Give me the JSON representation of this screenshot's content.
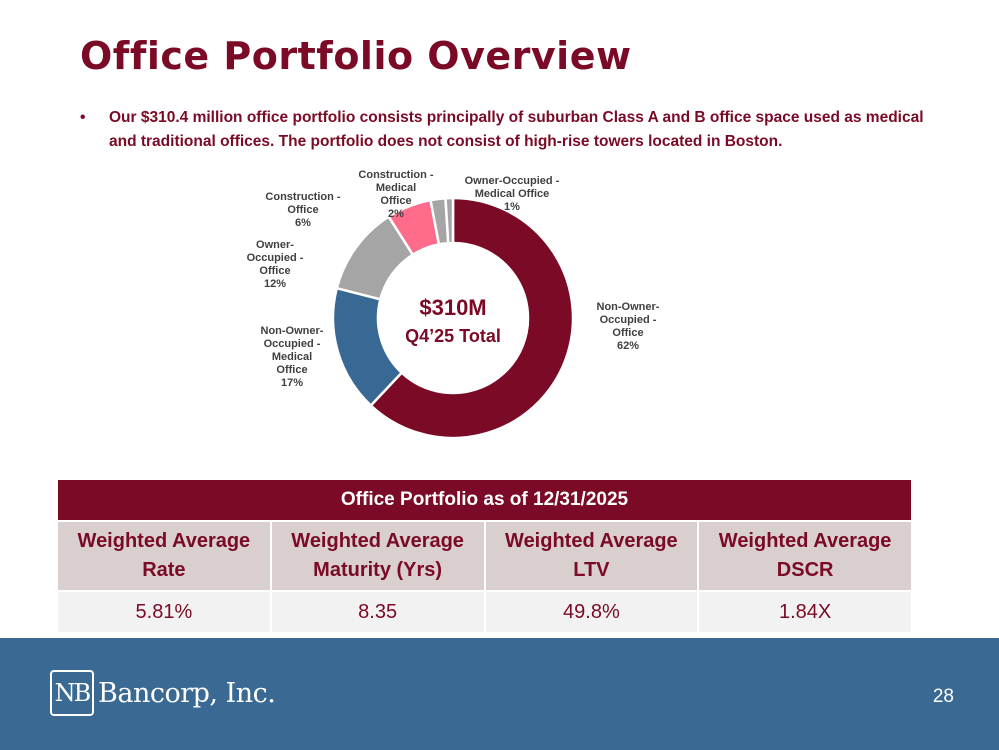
{
  "header": {
    "title": "Office Portfolio Overview"
  },
  "bullet": {
    "text": "Our $310.4 million office portfolio consists principally of suburban Class A and B office space used as medical and traditional offices. The portfolio does not consist of high-rise towers located in Boston."
  },
  "chart_data": {
    "type": "pie",
    "variant": "donut",
    "center_label": {
      "line1": "$310M",
      "line2": "Q4’25 Total"
    },
    "slices": [
      {
        "label": [
          "Non-Owner-",
          "Occupied -",
          "Office"
        ],
        "value": 62,
        "pct_label": "62%",
        "color": "#7a0a25"
      },
      {
        "label": [
          "Non-Owner-",
          "Occupied -",
          "Medical",
          "Office"
        ],
        "value": 17,
        "pct_label": "17%",
        "color": "#386994"
      },
      {
        "label": [
          "Owner-",
          "Occupied -",
          "Office"
        ],
        "value": 12,
        "pct_label": "12%",
        "color": "#a5a5a5"
      },
      {
        "label": [
          "Construction -",
          "Office"
        ],
        "value": 6,
        "pct_label": "6%",
        "color": "#ff6b8a"
      },
      {
        "label": [
          "Construction -",
          "Medical",
          "Office"
        ],
        "value": 2,
        "pct_label": "2%",
        "color": "#a5a5a5"
      },
      {
        "label": [
          "Owner-Occupied -",
          "Medical Office"
        ],
        "value": 1,
        "pct_label": "1%",
        "color": "#a5a5a5"
      }
    ]
  },
  "table": {
    "title": "Office Portfolio as of 12/31/2025",
    "headers": [
      [
        "Weighted Average",
        "Rate"
      ],
      [
        "Weighted Average",
        "Maturity (Yrs)"
      ],
      [
        "Weighted Average",
        "LTV"
      ],
      [
        "Weighted Average",
        "DSCR"
      ]
    ],
    "values": [
      "5.81%",
      "8.35",
      "49.8%",
      "1.84X"
    ]
  },
  "footer": {
    "logo_mark": "NB",
    "logo_text": "Bancorp, Inc.",
    "page_number": "28",
    "bg_color": "#3a6a93"
  }
}
